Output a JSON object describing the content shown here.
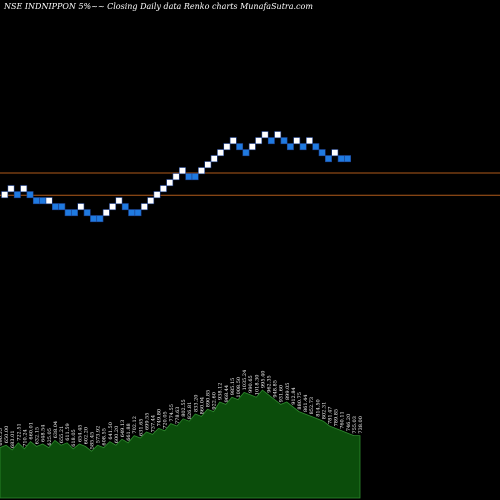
{
  "title": "NSE INDNIPPON  5%~~  Closing Daily data  Renko  charts MunafaSutra.com",
  "colors": {
    "background": "#000000",
    "up_brick": "#ffffff",
    "down_brick": "#1f7ae0",
    "brick_border": "#1d3f8a",
    "level_line": "#b05a1a",
    "volume_fill": "#0b4d0b",
    "volume_outline": "#2e8b2e",
    "volume_label": "#ffffff"
  },
  "chart_data": {
    "type": "renko",
    "brick_size_percent": 5,
    "price_axis": "hidden",
    "brick_levels": [
      0,
      1,
      2,
      3,
      4,
      5,
      6,
      7,
      8,
      9,
      10,
      11,
      12,
      13,
      14,
      15,
      16,
      17,
      18,
      19,
      20,
      21,
      22,
      23,
      24
    ],
    "bricks": [
      {
        "level": 6,
        "dir": "up"
      },
      {
        "level": 7,
        "dir": "up"
      },
      {
        "level": 6,
        "dir": "down"
      },
      {
        "level": 7,
        "dir": "up"
      },
      {
        "level": 6,
        "dir": "down"
      },
      {
        "level": 5,
        "dir": "down"
      },
      {
        "level": 5,
        "dir": "down"
      },
      {
        "level": 5,
        "dir": "up"
      },
      {
        "level": 4,
        "dir": "down"
      },
      {
        "level": 4,
        "dir": "down"
      },
      {
        "level": 3,
        "dir": "down"
      },
      {
        "level": 3,
        "dir": "down"
      },
      {
        "level": 4,
        "dir": "up"
      },
      {
        "level": 3,
        "dir": "down"
      },
      {
        "level": 2,
        "dir": "down"
      },
      {
        "level": 2,
        "dir": "down"
      },
      {
        "level": 3,
        "dir": "up"
      },
      {
        "level": 4,
        "dir": "up"
      },
      {
        "level": 5,
        "dir": "up"
      },
      {
        "level": 4,
        "dir": "down"
      },
      {
        "level": 3,
        "dir": "down"
      },
      {
        "level": 3,
        "dir": "down"
      },
      {
        "level": 4,
        "dir": "up"
      },
      {
        "level": 5,
        "dir": "up"
      },
      {
        "level": 6,
        "dir": "up"
      },
      {
        "level": 7,
        "dir": "up"
      },
      {
        "level": 8,
        "dir": "up"
      },
      {
        "level": 9,
        "dir": "up"
      },
      {
        "level": 10,
        "dir": "up"
      },
      {
        "level": 9,
        "dir": "down"
      },
      {
        "level": 9,
        "dir": "down"
      },
      {
        "level": 10,
        "dir": "up"
      },
      {
        "level": 11,
        "dir": "up"
      },
      {
        "level": 12,
        "dir": "up"
      },
      {
        "level": 13,
        "dir": "up"
      },
      {
        "level": 14,
        "dir": "up"
      },
      {
        "level": 15,
        "dir": "up"
      },
      {
        "level": 14,
        "dir": "down"
      },
      {
        "level": 13,
        "dir": "down"
      },
      {
        "level": 14,
        "dir": "up"
      },
      {
        "level": 15,
        "dir": "up"
      },
      {
        "level": 16,
        "dir": "up"
      },
      {
        "level": 15,
        "dir": "down"
      },
      {
        "level": 16,
        "dir": "up"
      },
      {
        "level": 15,
        "dir": "down"
      },
      {
        "level": 14,
        "dir": "down"
      },
      {
        "level": 15,
        "dir": "up"
      },
      {
        "level": 14,
        "dir": "down"
      },
      {
        "level": 15,
        "dir": "up"
      },
      {
        "level": 14,
        "dir": "down"
      },
      {
        "level": 13,
        "dir": "down"
      },
      {
        "level": 12,
        "dir": "down"
      },
      {
        "level": 13,
        "dir": "up"
      },
      {
        "level": 12,
        "dir": "down"
      },
      {
        "level": 12,
        "dir": "down"
      }
    ],
    "level_lines": [
      9.6,
      5.9
    ],
    "volume": {
      "values": [
        42,
        44,
        40,
        46,
        41,
        47,
        43,
        45,
        42,
        48,
        44,
        46,
        41,
        45,
        43,
        39,
        44,
        42,
        47,
        44,
        49,
        46,
        52,
        50,
        55,
        53,
        58,
        56,
        62,
        60,
        66,
        64,
        70,
        68,
        74,
        72,
        80,
        78,
        84,
        82,
        88,
        86,
        84,
        90,
        86,
        82,
        78,
        80,
        76,
        72,
        70,
        68,
        66,
        64,
        60,
        58,
        56,
        54,
        52,
        52
      ],
      "labels": [
        "690.55",
        "650.00",
        "683.01",
        "722.51",
        "710.24",
        "660.01",
        "632.15",
        "648.54",
        "625.05",
        "638.04",
        "655.21",
        "611.59",
        "618.05",
        "654.45",
        "602.20",
        "585.45",
        "573.92",
        "608.55",
        "641.50",
        "600.20",
        "649.13",
        "661.88",
        "702.12",
        "631.65",
        "699.55",
        "737.44",
        "749.80",
        "720.05",
        "774.55",
        "778.63",
        "802.55",
        "826.81",
        "833.20",
        "860.04",
        "890.85",
        "922.60",
        "938.12",
        "968.44",
        "985.15",
        "1008.50",
        "1035.24",
        "990.65",
        "1018.30",
        "995.40",
        "962.35",
        "948.85",
        "931.60",
        "899.05",
        "912.84",
        "880.75",
        "861.44",
        "852.73",
        "814.50",
        "802.31",
        "781.47",
        "789.85",
        "760.11",
        "746.20",
        "755.03",
        "738.00"
      ]
    }
  }
}
